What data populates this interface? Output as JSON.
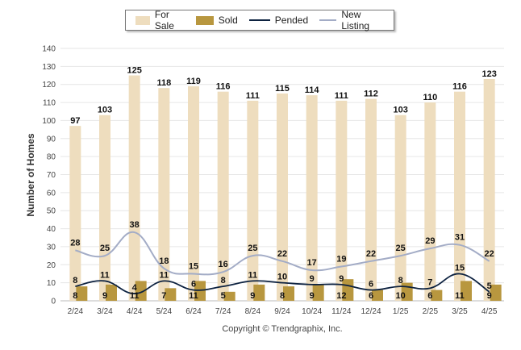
{
  "chart_data": {
    "type": "bar",
    "ylabel": "Number of Homes",
    "xlabel": "",
    "ylim": [
      0,
      140
    ],
    "yticks": [
      0,
      10,
      20,
      30,
      40,
      50,
      60,
      70,
      80,
      90,
      100,
      110,
      120,
      130,
      140
    ],
    "categories": [
      "2/24",
      "3/24",
      "4/24",
      "5/24",
      "6/24",
      "7/24",
      "8/24",
      "9/24",
      "10/24",
      "11/24",
      "12/24",
      "1/25",
      "2/25",
      "3/25",
      "4/25"
    ],
    "series": [
      {
        "name": "For Sale",
        "kind": "bar",
        "color": "#eeddbe",
        "values": [
          97,
          103,
          125,
          118,
          119,
          116,
          111,
          115,
          114,
          111,
          112,
          103,
          110,
          116,
          123
        ]
      },
      {
        "name": "Sold",
        "kind": "bar",
        "color": "#b8973f",
        "values": [
          8,
          9,
          11,
          7,
          11,
          5,
          9,
          8,
          9,
          12,
          6,
          10,
          6,
          11,
          9
        ]
      },
      {
        "name": "Pended",
        "kind": "line",
        "color": "#0d2240",
        "values": [
          8,
          11,
          4,
          11,
          6,
          8,
          11,
          10,
          9,
          9,
          6,
          8,
          7,
          15,
          5
        ]
      },
      {
        "name": "New Listing",
        "kind": "line",
        "color": "#a3acc6",
        "values": [
          28,
          25,
          38,
          18,
          15,
          16,
          25,
          22,
          17,
          19,
          22,
          25,
          29,
          31,
          22
        ]
      }
    ],
    "grid": true,
    "legend": "top-center"
  },
  "copyright": "Copyright © Trendgraphix, Inc."
}
